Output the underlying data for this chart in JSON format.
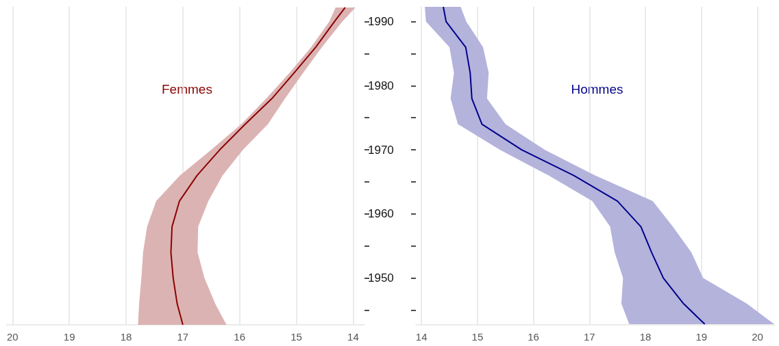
{
  "chart_data": [
    {
      "type": "line",
      "orientation": "horizontal",
      "grid": "x",
      "tick_labels": "xy",
      "xlim": [
        20.1,
        13.8
      ],
      "xticks": [
        20,
        19,
        18,
        17,
        16,
        15,
        14
      ],
      "ylim": [
        1942.7,
        1992.3
      ],
      "yticks": [
        {
          "value": 1945,
          "label": null
        },
        1950,
        {
          "value": 1955,
          "label": null
        },
        1960,
        {
          "value": 1965,
          "label": null
        },
        1970,
        {
          "value": 1975,
          "label": null
        },
        1980,
        {
          "value": 1985,
          "label": null
        },
        1990
      ],
      "series": [
        {
          "name": "Femmes",
          "color": "#8b0000",
          "x": [
            1942.7,
            1946,
            1950,
            1954,
            1958,
            1962,
            1966,
            1970,
            1974,
            1978,
            1982,
            1986,
            1990,
            1992.2
          ],
          "values": [
            17.0,
            17.1,
            17.17,
            17.21,
            17.19,
            17.06,
            16.75,
            16.35,
            15.9,
            15.43,
            15.04,
            14.66,
            14.33,
            14.14
          ],
          "lower": [
            16.23,
            16.43,
            16.62,
            16.74,
            16.73,
            16.55,
            16.3,
            15.94,
            15.5,
            15.2,
            14.88,
            14.55,
            14.19,
            13.96
          ],
          "upper": [
            17.79,
            17.77,
            17.73,
            17.7,
            17.63,
            17.47,
            17.05,
            16.5,
            15.97,
            15.53,
            15.12,
            14.74,
            14.42,
            14.31
          ]
        }
      ]
    },
    {
      "type": "line",
      "orientation": "horizontal",
      "grid": "x",
      "tick_labels": "x",
      "xlim": [
        13.9,
        20.3
      ],
      "xticks": [
        14,
        15,
        16,
        17,
        18,
        19,
        20
      ],
      "ylim": [
        1942.7,
        1992.3
      ],
      "yticks": [
        {
          "value": 1945,
          "label": null
        },
        1950,
        {
          "value": 1955,
          "label": null
        },
        1960,
        {
          "value": 1965,
          "label": null
        },
        1970,
        {
          "value": 1975,
          "label": null
        },
        1980,
        {
          "value": 1985,
          "label": null
        },
        1990
      ],
      "series": [
        {
          "name": "Hommes",
          "color": "#00008b",
          "x": [
            1942.8,
            1946,
            1950,
            1954,
            1958,
            1962,
            1966,
            1970,
            1974,
            1978,
            1982,
            1986,
            1990,
            1992.3
          ],
          "values": [
            19.06,
            18.68,
            18.32,
            18.11,
            17.92,
            17.5,
            16.72,
            15.79,
            15.08,
            14.9,
            14.87,
            14.79,
            14.44,
            14.39
          ],
          "lower": [
            17.71,
            17.57,
            17.6,
            17.45,
            17.37,
            17.05,
            16.27,
            15.4,
            14.65,
            14.52,
            14.58,
            14.5,
            14.08,
            14.06
          ],
          "upper": [
            20.3,
            19.81,
            19.03,
            18.82,
            18.49,
            18.13,
            17.1,
            16.2,
            15.5,
            15.17,
            15.2,
            15.1,
            14.8,
            14.7
          ]
        }
      ]
    }
  ]
}
